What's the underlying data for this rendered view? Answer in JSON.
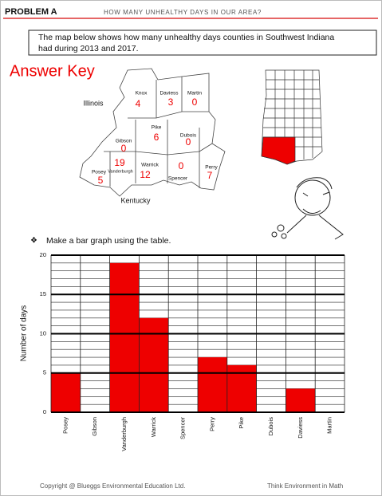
{
  "header": {
    "problem": "PROBLEM A",
    "title": "HOW MANY UNHEALTHY DAYS IN OUR AREA?"
  },
  "intro": [
    "The map below shows how many unhealthy days counties in Southwest Indiana",
    "had during 2013 and 2017."
  ],
  "answer_key": "Answer Key",
  "map": {
    "states": [
      "Illinois",
      "Kentucky"
    ],
    "counties": [
      {
        "name": "Knox",
        "days": 4
      },
      {
        "name": "Daviess",
        "days": 3
      },
      {
        "name": "Martin",
        "days": 0
      },
      {
        "name": "Pike",
        "days": 6
      },
      {
        "name": "Dubois",
        "days": 0
      },
      {
        "name": "Gibson",
        "days": 0
      },
      {
        "name": "Vanderburgh",
        "days": 19
      },
      {
        "name": "Posey",
        "days": 5
      },
      {
        "name": "Warrick",
        "days": 12
      },
      {
        "name": "Spencer",
        "days": 0
      },
      {
        "name": "Perry",
        "days": 7
      }
    ]
  },
  "instruction": "Make a bar graph using the table.",
  "chart_data": {
    "type": "bar",
    "ylabel": "Number of days",
    "categories": [
      "Posey",
      "Gibson",
      "Vanderburgh",
      "Warrick",
      "Spencer",
      "Perry",
      "Pike",
      "Dubois",
      "Daviess",
      "Martin"
    ],
    "values": [
      5,
      0,
      19,
      12,
      0,
      7,
      6,
      0,
      3,
      0
    ],
    "color": "#ee0000",
    "ylim": [
      0,
      20
    ],
    "yticks": [
      0,
      5,
      10,
      15,
      20
    ],
    "minor_yticks": [
      1,
      2,
      3,
      4,
      6,
      7,
      8,
      9,
      11,
      12,
      13,
      14,
      16,
      17,
      18,
      19
    ],
    "grid": true
  },
  "footer": {
    "left": "Copyright @ Blueggs Environmental Education Ltd.",
    "right": "Think Environment in Math"
  }
}
